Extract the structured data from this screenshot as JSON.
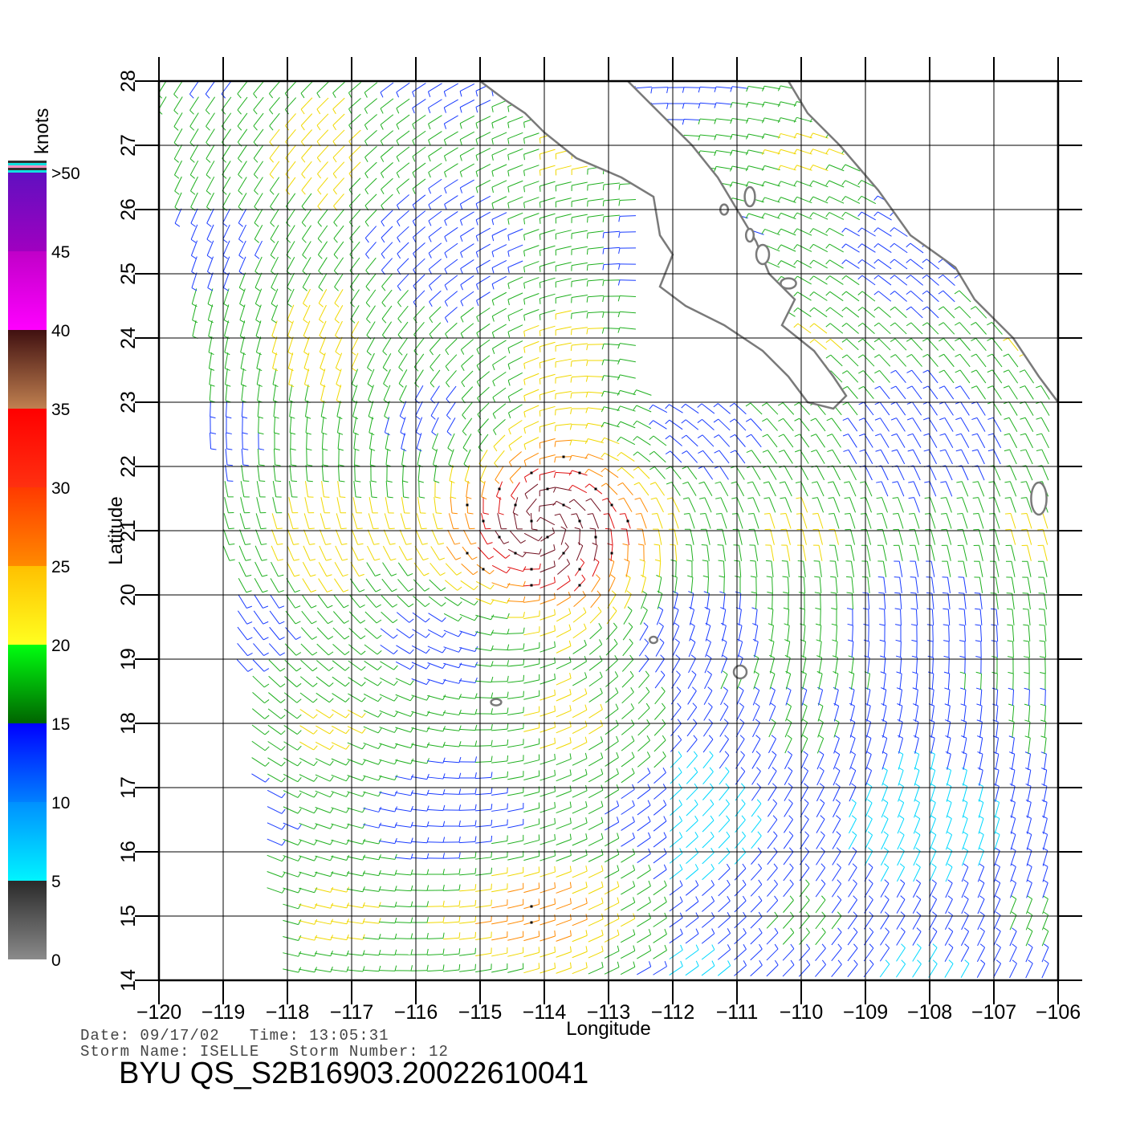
{
  "chart_data": {
    "type": "wind-barb-map",
    "xlabel": "Longitude",
    "ylabel": "Latitude",
    "xlim": [
      -120,
      -106
    ],
    "ylim": [
      14,
      28
    ],
    "x_ticks": [
      -120,
      -119,
      -118,
      -117,
      -116,
      -115,
      -114,
      -113,
      -112,
      -111,
      -110,
      -109,
      -108,
      -107,
      -106
    ],
    "x_tick_labels": [
      "−120",
      "−119",
      "−118",
      "−117",
      "−116",
      "−115",
      "−114",
      "−113",
      "−112",
      "−111",
      "−110",
      "−109",
      "−108",
      "−107",
      "−106"
    ],
    "y_ticks": [
      14,
      15,
      16,
      17,
      18,
      19,
      20,
      21,
      22,
      23,
      24,
      25,
      26,
      27,
      28
    ],
    "y_tick_labels": [
      "14",
      "15",
      "16",
      "17",
      "18",
      "19",
      "20",
      "21",
      "22",
      "23",
      "24",
      "25",
      "26",
      "27",
      "28"
    ],
    "grid": true,
    "units": "knots",
    "colorbar": {
      "title": "knots",
      "position": "left",
      "labels": [
        "0",
        "5",
        "10",
        "15",
        "20",
        "25",
        "30",
        "35",
        "40",
        "45",
        ">50"
      ],
      "stops": [
        {
          "from": 0,
          "to": 5,
          "colors": [
            "#8a8a8a",
            "#2a2a2a"
          ]
        },
        {
          "from": 5,
          "to": 10,
          "colors": [
            "#00f4ff",
            "#0090ff"
          ]
        },
        {
          "from": 10,
          "to": 15,
          "colors": [
            "#0080ff",
            "#0000ff"
          ]
        },
        {
          "from": 15,
          "to": 20,
          "colors": [
            "#006400",
            "#00ff10"
          ]
        },
        {
          "from": 20,
          "to": 25,
          "colors": [
            "#ffff20",
            "#ffc000"
          ]
        },
        {
          "from": 25,
          "to": 30,
          "colors": [
            "#ff8a00",
            "#ff3a00"
          ]
        },
        {
          "from": 30,
          "to": 35,
          "colors": [
            "#ff3010",
            "#ff0000"
          ]
        },
        {
          "from": 35,
          "to": 40,
          "colors": [
            "#c08050",
            "#401010"
          ]
        },
        {
          "from": 40,
          "to": 45,
          "colors": [
            "#ff00ff",
            "#c000c8"
          ]
        },
        {
          "from": 45,
          "to": 50,
          "colors": [
            "#a000c0",
            "#6010c0"
          ]
        }
      ]
    },
    "wind_field": {
      "centers": [
        {
          "name": "ISELLE",
          "lon": -114.0,
          "lat": 21.1,
          "peak_speed_knots": 34
        },
        {
          "lon": -114.5,
          "lat": 15.0,
          "peak_speed_knots": 24
        }
      ],
      "background_speed_knots": 16,
      "swath_edge_lon_at_lat14": -118.0,
      "swath_edge_lon_at_lat28": -120.0
    },
    "coastline": {
      "baja_west": [
        [
          -115.0,
          28.0
        ],
        [
          -114.6,
          27.7
        ],
        [
          -114.3,
          27.5
        ],
        [
          -114.0,
          27.2
        ],
        [
          -113.5,
          26.8
        ],
        [
          -112.8,
          26.5
        ],
        [
          -112.3,
          26.2
        ],
        [
          -112.2,
          25.6
        ],
        [
          -112.0,
          25.3
        ],
        [
          -112.2,
          24.8
        ],
        [
          -111.8,
          24.5
        ],
        [
          -111.2,
          24.2
        ],
        [
          -110.6,
          23.8
        ],
        [
          -110.2,
          23.4
        ],
        [
          -109.9,
          23.0
        ],
        [
          -109.5,
          22.9
        ],
        [
          -109.3,
          23.1
        ]
      ],
      "baja_east": [
        [
          -109.3,
          23.1
        ],
        [
          -109.5,
          23.4
        ],
        [
          -109.8,
          23.8
        ],
        [
          -110.3,
          24.2
        ],
        [
          -110.1,
          24.6
        ],
        [
          -110.5,
          25.0
        ],
        [
          -110.7,
          25.5
        ],
        [
          -111.0,
          26.0
        ],
        [
          -111.3,
          26.5
        ],
        [
          -111.7,
          27.0
        ],
        [
          -112.2,
          27.5
        ],
        [
          -112.7,
          28.0
        ]
      ],
      "mainland": [
        [
          -110.2,
          28.0
        ],
        [
          -109.9,
          27.5
        ],
        [
          -109.4,
          27.0
        ],
        [
          -108.8,
          26.3
        ],
        [
          -108.3,
          25.6
        ],
        [
          -107.6,
          25.1
        ],
        [
          -107.3,
          24.6
        ],
        [
          -106.7,
          24.0
        ],
        [
          -106.3,
          23.4
        ],
        [
          -106.0,
          23.0
        ]
      ],
      "islands": [
        {
          "lon": -106.3,
          "lat": 21.5,
          "rx": 0.12,
          "ry": 0.25
        },
        {
          "lon": -110.95,
          "lat": 18.8,
          "rx": 0.1,
          "ry": 0.1
        },
        {
          "lon": -112.3,
          "lat": 19.3,
          "rx": 0.06,
          "ry": 0.05
        },
        {
          "lon": -114.75,
          "lat": 18.33,
          "rx": 0.08,
          "ry": 0.05
        },
        {
          "lon": -110.2,
          "lat": 24.85,
          "rx": 0.12,
          "ry": 0.08
        },
        {
          "lon": -110.8,
          "lat": 25.6,
          "rx": 0.06,
          "ry": 0.1
        },
        {
          "lon": -111.2,
          "lat": 26.0,
          "rx": 0.06,
          "ry": 0.08
        },
        {
          "lon": -110.6,
          "lat": 25.3,
          "rx": 0.1,
          "ry": 0.15
        },
        {
          "lon": -110.8,
          "lat": 26.2,
          "rx": 0.08,
          "ry": 0.15
        }
      ]
    }
  },
  "footer": {
    "date_label": "Date:",
    "date_value": "09/17/02",
    "time_label": "Time:",
    "time_value": "13:05:31",
    "storm_name_label": "Storm Name:",
    "storm_name_value": "ISELLE",
    "storm_number_label": "Storm Number:",
    "storm_number_value": "12",
    "product_id": "BYU QS_S2B16903.20022610041"
  }
}
